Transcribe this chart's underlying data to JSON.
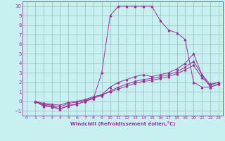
{
  "bg_color": "#c8f0f0",
  "line_color": "#993399",
  "grid_color": "#99bbbb",
  "xlabel": "Windchill (Refroidissement éolien,°C)",
  "xlim": [
    -0.5,
    23.5
  ],
  "ylim": [
    -1.5,
    10.5
  ],
  "xticks": [
    0,
    1,
    2,
    3,
    4,
    5,
    6,
    7,
    8,
    9,
    10,
    11,
    12,
    13,
    14,
    15,
    16,
    17,
    18,
    19,
    20,
    21,
    22,
    23
  ],
  "yticks": [
    -1,
    0,
    1,
    2,
    3,
    4,
    5,
    6,
    7,
    8,
    9,
    10
  ],
  "lines": [
    {
      "x": [
        1,
        2,
        3,
        4,
        5,
        6,
        7,
        8,
        9,
        10,
        11,
        12,
        13,
        14,
        15,
        16,
        17,
        18,
        19,
        20,
        21,
        22,
        23
      ],
      "y": [
        0.0,
        -0.5,
        -0.6,
        -0.8,
        -0.5,
        -0.3,
        0.0,
        0.3,
        3.0,
        9.0,
        10.0,
        10.0,
        10.0,
        10.0,
        10.0,
        8.5,
        7.5,
        7.2,
        6.5,
        2.0,
        1.5,
        1.5,
        1.8
      ]
    },
    {
      "x": [
        1,
        2,
        3,
        4,
        5,
        6,
        7,
        8,
        9,
        10,
        11,
        12,
        13,
        14,
        15,
        16,
        17,
        18,
        19,
        20,
        21,
        22,
        23
      ],
      "y": [
        0.0,
        -0.4,
        -0.5,
        -0.8,
        -0.4,
        -0.3,
        0.0,
        0.3,
        0.7,
        1.5,
        2.0,
        2.3,
        2.6,
        2.8,
        2.6,
        2.8,
        3.0,
        3.4,
        4.0,
        5.0,
        2.8,
        1.5,
        1.8
      ]
    },
    {
      "x": [
        1,
        2,
        3,
        4,
        5,
        6,
        7,
        8,
        9,
        10,
        11,
        12,
        13,
        14,
        15,
        16,
        17,
        18,
        19,
        20,
        21,
        22,
        23
      ],
      "y": [
        0.0,
        -0.3,
        -0.4,
        -0.6,
        -0.2,
        -0.1,
        0.1,
        0.4,
        0.6,
        1.1,
        1.5,
        1.8,
        2.1,
        2.3,
        2.4,
        2.6,
        2.8,
        3.1,
        3.6,
        4.2,
        2.8,
        1.8,
        2.0
      ]
    },
    {
      "x": [
        1,
        2,
        3,
        4,
        5,
        6,
        7,
        8,
        9,
        10,
        11,
        12,
        13,
        14,
        15,
        16,
        17,
        18,
        19,
        20,
        21,
        22,
        23
      ],
      "y": [
        0.0,
        -0.2,
        -0.3,
        -0.4,
        -0.1,
        0.0,
        0.2,
        0.5,
        0.7,
        1.0,
        1.3,
        1.6,
        1.9,
        2.1,
        2.2,
        2.4,
        2.6,
        2.9,
        3.3,
        3.8,
        2.5,
        1.7,
        2.0
      ]
    }
  ]
}
